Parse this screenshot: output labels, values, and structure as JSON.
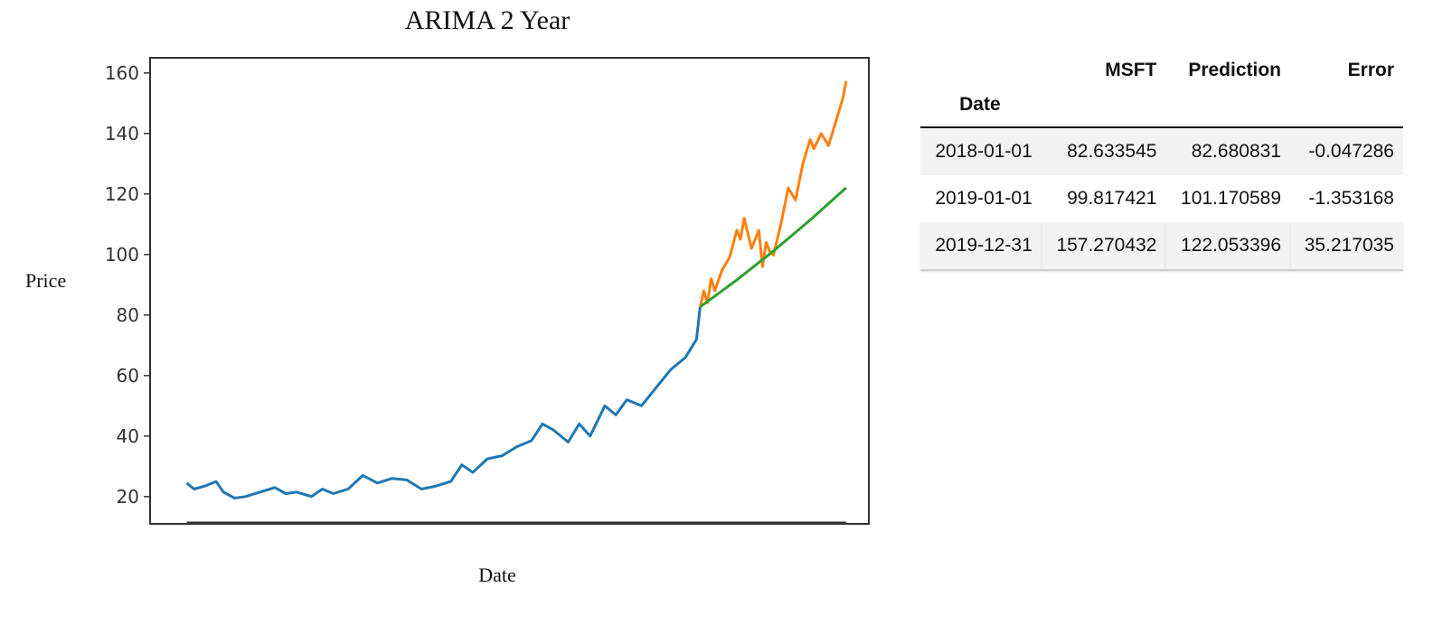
{
  "chart_data": {
    "type": "line",
    "title": "ARIMA 2 Year",
    "xlabel": "Date",
    "ylabel": "Price",
    "ylim": [
      11,
      165
    ],
    "yticks": [
      20,
      40,
      60,
      80,
      100,
      120,
      140,
      160
    ],
    "xlim": [
      2010.5,
      2020.3
    ],
    "grid": false,
    "series": [
      {
        "color": "#1f77b4",
        "x": [
          2011.0,
          2011.1,
          2011.25,
          2011.4,
          2011.5,
          2011.65,
          2011.8,
          2012.0,
          2012.2,
          2012.35,
          2012.5,
          2012.7,
          2012.85,
          2013.0,
          2013.2,
          2013.4,
          2013.6,
          2013.8,
          2014.0,
          2014.2,
          2014.4,
          2014.6,
          2014.75,
          2014.9,
          2015.1,
          2015.3,
          2015.5,
          2015.7,
          2015.85,
          2016.0,
          2016.2,
          2016.35,
          2016.5,
          2016.7,
          2016.85,
          2017.0,
          2017.2,
          2017.4,
          2017.6,
          2017.8,
          2017.95,
          2018.0
        ],
        "y": [
          24.5,
          22.5,
          23.5,
          25.0,
          21.5,
          19.5,
          20.0,
          21.5,
          23.0,
          21.0,
          21.5,
          20.0,
          22.5,
          21.0,
          22.5,
          27.0,
          24.5,
          26.0,
          25.5,
          22.5,
          23.5,
          25.0,
          30.5,
          28.0,
          32.5,
          33.5,
          36.5,
          38.5,
          44.0,
          42.0,
          38.0,
          44.0,
          40.0,
          50.0,
          47.0,
          52.0,
          50.0,
          56.0,
          62.0,
          66.0,
          72.0,
          82.6
        ]
      },
      {
        "color": "#ff7f0e",
        "x": [
          2018.0,
          2018.05,
          2018.1,
          2018.15,
          2018.2,
          2018.3,
          2018.4,
          2018.5,
          2018.55,
          2018.6,
          2018.7,
          2018.8,
          2018.85,
          2018.9,
          2018.95,
          2019.0,
          2019.1,
          2019.2,
          2019.3,
          2019.4,
          2019.5,
          2019.55,
          2019.65,
          2019.75,
          2019.85,
          2019.95,
          2019.99
        ],
        "y": [
          82.6,
          88.0,
          84.0,
          92.0,
          88.0,
          95.0,
          99.0,
          108.0,
          105.0,
          112.0,
          102.0,
          108.0,
          96.0,
          104.0,
          101.0,
          99.8,
          110.0,
          122.0,
          118.0,
          130.0,
          138.0,
          135.0,
          140.0,
          136.0,
          144.0,
          152.0,
          157.3
        ]
      },
      {
        "color": "#2ca02c",
        "x": [
          2018.0,
          2018.5,
          2019.0,
          2019.5,
          2019.99
        ],
        "y": [
          82.68,
          91.6,
          101.17,
          111.4,
          122.05
        ]
      }
    ]
  },
  "table": {
    "columns": [
      "MSFT",
      "Prediction",
      "Error"
    ],
    "index_name": "Date",
    "rows": [
      {
        "date": "2018-01-01",
        "msft": "82.633545",
        "prediction": "82.680831",
        "error": "-0.047286"
      },
      {
        "date": "2019-01-01",
        "msft": "99.817421",
        "prediction": "101.170589",
        "error": "-1.353168"
      },
      {
        "date": "2019-12-31",
        "msft": "157.270432",
        "prediction": "122.053396",
        "error": "35.217035"
      }
    ]
  }
}
